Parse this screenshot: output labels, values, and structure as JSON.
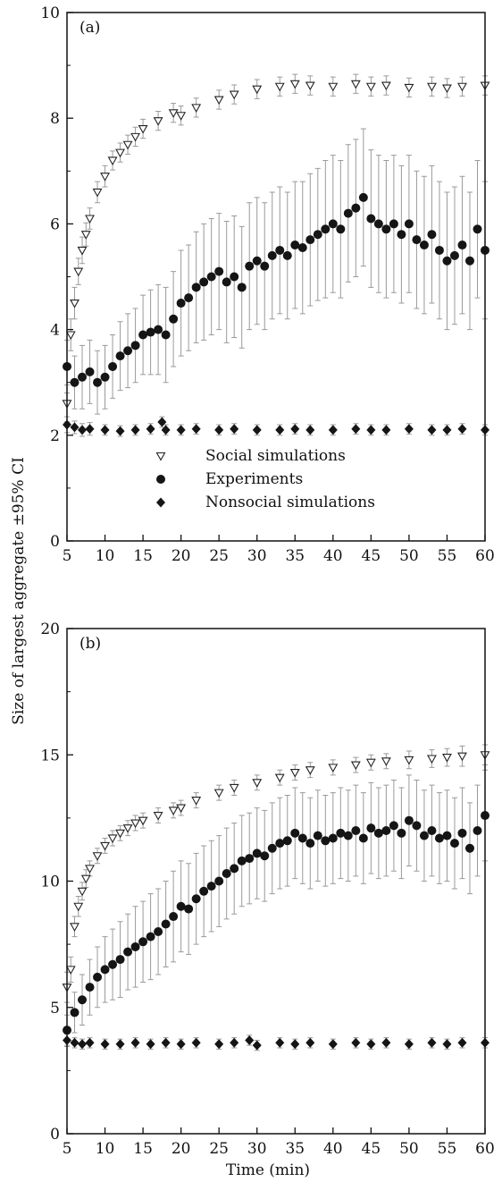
{
  "chart_data": {
    "type": "scatter",
    "ylabel": "Size of largest aggregate ±95% CI",
    "xlabel": "Time (min)",
    "xlim": [
      5,
      60
    ],
    "x_ticks": [
      "5",
      "10",
      "15",
      "20",
      "25",
      "30",
      "35",
      "40",
      "45",
      "50",
      "55",
      "60"
    ],
    "panels": [
      {
        "label": "(a)",
        "ylim": [
          0,
          10
        ],
        "y_ticks": [
          "0",
          "2",
          "4",
          "6",
          "8",
          "10"
        ],
        "legend": {
          "placement": "lower-center",
          "entries": [
            {
              "name": "Social simulations",
              "marker": "triangle-down-open"
            },
            {
              "name": "Experiments",
              "marker": "circle-filled"
            },
            {
              "name": "Nonsocial simulations",
              "marker": "diamond-filled"
            }
          ]
        },
        "series": [
          {
            "name": "Social simulations",
            "marker": "triangle-down-open",
            "x": [
              5.0,
              5.5,
              6.0,
              6.5,
              7.0,
              7.5,
              8.0,
              9.0,
              10.0,
              11.0,
              12.0,
              13.0,
              14.0,
              15.0,
              17.0,
              19.0,
              20.0,
              22.0,
              25.0,
              27.0,
              30.0,
              33.0,
              35.0,
              37.0,
              40.0,
              43.0,
              45.0,
              47.0,
              50.0,
              53.0,
              55.0,
              57.0,
              60.0
            ],
            "y": [
              2.6,
              3.9,
              4.5,
              5.1,
              5.5,
              5.8,
              6.1,
              6.6,
              6.9,
              7.2,
              7.35,
              7.5,
              7.65,
              7.8,
              7.95,
              8.1,
              8.05,
              8.2,
              8.35,
              8.45,
              8.55,
              8.6,
              8.65,
              8.62,
              8.6,
              8.65,
              8.6,
              8.62,
              8.58,
              8.6,
              8.57,
              8.6,
              8.62
            ],
            "ci": [
              0.35,
              0.3,
              0.3,
              0.25,
              0.25,
              0.22,
              0.2,
              0.2,
              0.2,
              0.18,
              0.18,
              0.18,
              0.18,
              0.18,
              0.18,
              0.18,
              0.18,
              0.18,
              0.18,
              0.18,
              0.18,
              0.18,
              0.18,
              0.18,
              0.18,
              0.18,
              0.18,
              0.18,
              0.18,
              0.18,
              0.18,
              0.18,
              0.18
            ]
          },
          {
            "name": "Experiments",
            "marker": "circle-filled",
            "x": [
              5.0,
              6.0,
              7.0,
              8.0,
              9.0,
              10.0,
              11.0,
              12.0,
              13.0,
              14.0,
              15.0,
              16.0,
              17.0,
              18.0,
              19.0,
              20.0,
              21.0,
              22.0,
              23.0,
              24.0,
              25.0,
              26.0,
              27.0,
              28.0,
              29.0,
              30.0,
              31.0,
              32.0,
              33.0,
              34.0,
              35.0,
              36.0,
              37.0,
              38.0,
              39.0,
              40.0,
              41.0,
              42.0,
              43.0,
              44.0,
              45.0,
              46.0,
              47.0,
              48.0,
              49.0,
              50.0,
              51.0,
              52.0,
              53.0,
              54.0,
              55.0,
              56.0,
              57.0,
              58.0,
              59.0,
              60.0
            ],
            "y": [
              3.3,
              3.0,
              3.1,
              3.2,
              3.0,
              3.1,
              3.3,
              3.5,
              3.6,
              3.7,
              3.9,
              3.95,
              4.0,
              3.9,
              4.2,
              4.5,
              4.6,
              4.8,
              4.9,
              5.0,
              5.1,
              4.9,
              5.0,
              4.8,
              5.2,
              5.3,
              5.2,
              5.4,
              5.5,
              5.4,
              5.6,
              5.55,
              5.7,
              5.8,
              5.9,
              6.0,
              5.9,
              6.2,
              6.3,
              6.5,
              6.1,
              6.0,
              5.9,
              6.0,
              5.8,
              6.0,
              5.7,
              5.6,
              5.8,
              5.5,
              5.3,
              5.4,
              5.6,
              5.3,
              5.9,
              5.5
            ],
            "ci": [
              0.5,
              0.5,
              0.6,
              0.6,
              0.6,
              0.6,
              0.6,
              0.65,
              0.7,
              0.7,
              0.75,
              0.8,
              0.85,
              0.9,
              0.9,
              1.0,
              1.0,
              1.05,
              1.1,
              1.1,
              1.1,
              1.15,
              1.15,
              1.15,
              1.2,
              1.2,
              1.2,
              1.2,
              1.2,
              1.2,
              1.2,
              1.25,
              1.25,
              1.25,
              1.3,
              1.3,
              1.3,
              1.3,
              1.3,
              1.3,
              1.3,
              1.3,
              1.3,
              1.3,
              1.3,
              1.3,
              1.3,
              1.3,
              1.3,
              1.3,
              1.3,
              1.3,
              1.3,
              1.3,
              1.3,
              1.3
            ]
          },
          {
            "name": "Nonsocial simulations",
            "marker": "diamond-filled",
            "x": [
              5.0,
              6.0,
              7.0,
              8.0,
              10.0,
              12.0,
              14.0,
              16.0,
              17.5,
              18.0,
              20.0,
              22.0,
              25.0,
              27.0,
              30.0,
              33.0,
              35.0,
              37.0,
              40.0,
              43.0,
              45.0,
              47.0,
              50.0,
              53.0,
              55.0,
              57.0,
              60.0
            ],
            "y": [
              2.2,
              2.15,
              2.1,
              2.12,
              2.1,
              2.08,
              2.1,
              2.12,
              2.25,
              2.1,
              2.1,
              2.12,
              2.1,
              2.12,
              2.1,
              2.1,
              2.12,
              2.1,
              2.1,
              2.12,
              2.1,
              2.1,
              2.12,
              2.1,
              2.1,
              2.12,
              2.1
            ],
            "ci": [
              0.15,
              0.12,
              0.12,
              0.12,
              0.1,
              0.1,
              0.1,
              0.1,
              0.1,
              0.1,
              0.1,
              0.1,
              0.1,
              0.1,
              0.1,
              0.1,
              0.1,
              0.1,
              0.1,
              0.1,
              0.1,
              0.1,
              0.1,
              0.1,
              0.1,
              0.1,
              0.1
            ]
          }
        ]
      },
      {
        "label": "(b)",
        "ylim": [
          0,
          20
        ],
        "y_ticks": [
          "0",
          "5",
          "10",
          "15",
          "20"
        ],
        "series": [
          {
            "name": "Social simulations",
            "marker": "triangle-down-open",
            "x": [
              5.0,
              5.5,
              6.0,
              6.5,
              7.0,
              7.5,
              8.0,
              9.0,
              10.0,
              11.0,
              12.0,
              13.0,
              14.0,
              15.0,
              17.0,
              19.0,
              20.0,
              22.0,
              25.0,
              27.0,
              30.0,
              33.0,
              35.0,
              37.0,
              40.0,
              43.0,
              45.0,
              47.0,
              50.0,
              53.0,
              55.0,
              57.0,
              60.0
            ],
            "y": [
              5.8,
              6.5,
              8.2,
              9.0,
              9.6,
              10.1,
              10.5,
              11.0,
              11.4,
              11.7,
              11.9,
              12.1,
              12.3,
              12.4,
              12.6,
              12.8,
              12.9,
              13.2,
              13.5,
              13.7,
              13.9,
              14.1,
              14.3,
              14.4,
              14.5,
              14.6,
              14.7,
              14.75,
              14.8,
              14.85,
              14.9,
              14.95,
              15.0
            ],
            "ci": [
              0.6,
              0.5,
              0.4,
              0.4,
              0.35,
              0.35,
              0.3,
              0.3,
              0.3,
              0.3,
              0.3,
              0.3,
              0.3,
              0.3,
              0.3,
              0.3,
              0.3,
              0.3,
              0.3,
              0.3,
              0.3,
              0.3,
              0.3,
              0.3,
              0.3,
              0.3,
              0.3,
              0.3,
              0.35,
              0.35,
              0.35,
              0.4,
              0.4
            ]
          },
          {
            "name": "Experiments",
            "marker": "circle-filled",
            "x": [
              5.0,
              6.0,
              7.0,
              8.0,
              9.0,
              10.0,
              11.0,
              12.0,
              13.0,
              14.0,
              15.0,
              16.0,
              17.0,
              18.0,
              19.0,
              20.0,
              21.0,
              22.0,
              23.0,
              24.0,
              25.0,
              26.0,
              27.0,
              28.0,
              29.0,
              30.0,
              31.0,
              32.0,
              33.0,
              34.0,
              35.0,
              36.0,
              37.0,
              38.0,
              39.0,
              40.0,
              41.0,
              42.0,
              43.0,
              44.0,
              45.0,
              46.0,
              47.0,
              48.0,
              49.0,
              50.0,
              51.0,
              52.0,
              53.0,
              54.0,
              55.0,
              56.0,
              57.0,
              58.0,
              59.0,
              60.0
            ],
            "y": [
              4.1,
              4.8,
              5.3,
              5.8,
              6.2,
              6.5,
              6.7,
              6.9,
              7.2,
              7.4,
              7.6,
              7.8,
              8.0,
              8.3,
              8.6,
              9.0,
              8.9,
              9.3,
              9.6,
              9.8,
              10.0,
              10.3,
              10.5,
              10.8,
              10.9,
              11.1,
              11.0,
              11.3,
              11.5,
              11.6,
              11.9,
              11.7,
              11.5,
              11.8,
              11.6,
              11.7,
              11.9,
              11.8,
              12.0,
              11.7,
              12.1,
              11.9,
              12.0,
              12.2,
              11.9,
              12.4,
              12.2,
              11.8,
              12.0,
              11.7,
              11.8,
              11.5,
              11.9,
              11.3,
              12.0,
              12.6
            ],
            "ci": [
              0.6,
              0.8,
              1.0,
              1.1,
              1.2,
              1.3,
              1.4,
              1.5,
              1.5,
              1.6,
              1.6,
              1.7,
              1.7,
              1.7,
              1.8,
              1.8,
              1.8,
              1.8,
              1.8,
              1.8,
              1.8,
              1.8,
              1.8,
              1.8,
              1.8,
              1.8,
              1.8,
              1.8,
              1.8,
              1.8,
              1.8,
              1.8,
              1.8,
              1.8,
              1.8,
              1.8,
              1.8,
              1.8,
              1.8,
              1.8,
              1.8,
              1.8,
              1.8,
              1.8,
              1.8,
              1.8,
              1.8,
              1.8,
              1.8,
              1.8,
              1.8,
              1.8,
              1.8,
              1.8,
              1.8,
              1.8
            ]
          },
          {
            "name": "Nonsocial simulations",
            "marker": "diamond-filled",
            "x": [
              5.0,
              6.0,
              7.0,
              8.0,
              10.0,
              12.0,
              14.0,
              16.0,
              18.0,
              20.0,
              22.0,
              25.0,
              27.0,
              29.0,
              30.0,
              33.0,
              35.0,
              37.0,
              40.0,
              43.0,
              45.0,
              47.0,
              50.0,
              53.0,
              55.0,
              57.0,
              60.0
            ],
            "y": [
              3.7,
              3.6,
              3.55,
              3.6,
              3.55,
              3.55,
              3.6,
              3.55,
              3.6,
              3.55,
              3.6,
              3.55,
              3.6,
              3.7,
              3.5,
              3.6,
              3.55,
              3.6,
              3.55,
              3.6,
              3.55,
              3.6,
              3.55,
              3.6,
              3.55,
              3.6,
              3.6
            ],
            "ci": [
              0.25,
              0.2,
              0.2,
              0.2,
              0.2,
              0.2,
              0.2,
              0.2,
              0.2,
              0.2,
              0.2,
              0.2,
              0.2,
              0.2,
              0.2,
              0.2,
              0.2,
              0.2,
              0.2,
              0.2,
              0.2,
              0.2,
              0.2,
              0.2,
              0.2,
              0.2,
              0.2
            ]
          }
        ]
      }
    ]
  }
}
